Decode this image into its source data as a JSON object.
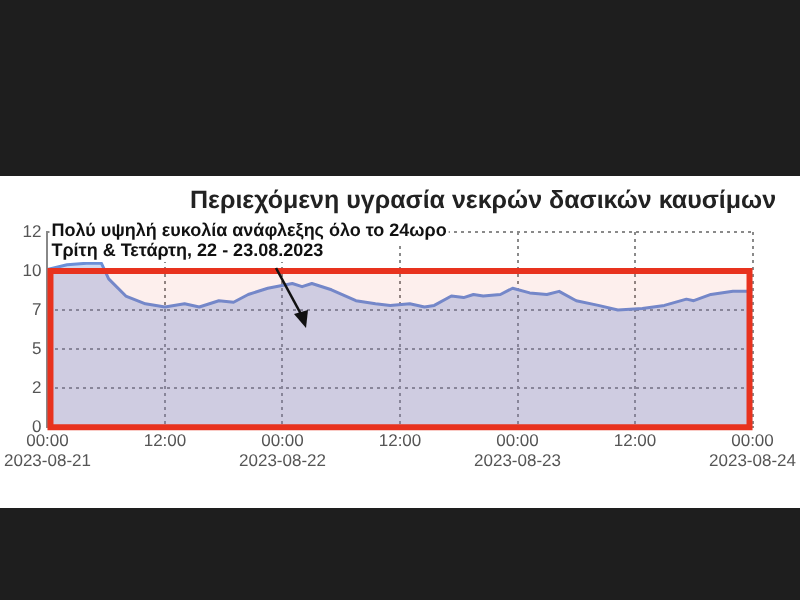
{
  "chart_data": {
    "type": "area",
    "title": "Περιεχόμενη υγρασία νεκρών δασικών καυσίμων",
    "annotations": [
      "Πολύ υψηλή ευκολία ανάφλεξης όλο το 24ωρο",
      "Τρίτη & Τετάρτη, 22 - 23.08.2023"
    ],
    "x": [
      "2023-08-21T00:00",
      "2023-08-21T02:00",
      "2023-08-21T04:00",
      "2023-08-21T05:30",
      "2023-08-21T06:15",
      "2023-08-21T08:00",
      "2023-08-21T10:00",
      "2023-08-21T12:00",
      "2023-08-21T14:00",
      "2023-08-21T15:30",
      "2023-08-21T17:30",
      "2023-08-21T19:00",
      "2023-08-21T20:30",
      "2023-08-21T22:30",
      "2023-08-22T01:00",
      "2023-08-22T02:00",
      "2023-08-22T03:00",
      "2023-08-22T05:00",
      "2023-08-22T07:30",
      "2023-08-22T09:30",
      "2023-08-22T11:00",
      "2023-08-22T13:00",
      "2023-08-22T14:30",
      "2023-08-22T15:30",
      "2023-08-22T17:15",
      "2023-08-22T18:30",
      "2023-08-22T19:30",
      "2023-08-22T20:30",
      "2023-08-22T22:15",
      "2023-08-22T23:30",
      "2023-08-23T01:15",
      "2023-08-23T03:00",
      "2023-08-23T04:15",
      "2023-08-23T06:00",
      "2023-08-23T08:15",
      "2023-08-23T10:15",
      "2023-08-23T12:45",
      "2023-08-23T15:00",
      "2023-08-23T17:15",
      "2023-08-23T18:00",
      "2023-08-23T19:45",
      "2023-08-23T22:00",
      "2023-08-24T00:00"
    ],
    "series": [
      {
        "color": "#6b8fd8",
        "values": [
          10.1,
          10.4,
          10.5,
          10.5,
          9.5,
          8.4,
          7.9,
          7.7,
          7.9,
          7.7,
          8.1,
          8.0,
          8.5,
          8.9,
          9.2,
          9.0,
          9.2,
          8.8,
          8.1,
          7.9,
          7.8,
          7.9,
          7.7,
          7.8,
          8.4,
          8.3,
          8.5,
          8.4,
          8.5,
          8.9,
          8.6,
          8.5,
          8.7,
          8.1,
          7.8,
          7.5,
          7.6,
          7.8,
          8.2,
          8.1,
          8.5,
          8.7,
          8.7
        ]
      }
    ],
    "xlim": [
      "2023-08-21T00:00",
      "2023-08-24T00:00"
    ],
    "xticks": [
      {
        "value": "2023-08-21T00:00",
        "label": "00:00 2023-08-21"
      },
      {
        "value": "2023-08-21T12:00",
        "label": "12:00"
      },
      {
        "value": "2023-08-22T00:00",
        "label": "00:00 2023-08-22"
      },
      {
        "value": "2023-08-22T12:00",
        "label": "12:00"
      },
      {
        "value": "2023-08-23T00:00",
        "label": "00:00 2023-08-23"
      },
      {
        "value": "2023-08-23T12:00",
        "label": "12:00"
      },
      {
        "value": "2023-08-24T00:00",
        "label": "00:00 2023-08-24"
      }
    ],
    "ylim": [
      0,
      12.5
    ],
    "yticks": [
      0,
      {
        "value": 2.5,
        "label": "2"
      },
      5,
      {
        "value": 7.5,
        "label": "7"
      },
      10,
      {
        "value": 12.5,
        "label": "12"
      }
    ],
    "bands": [
      {
        "axis": "y",
        "from": 0,
        "to": 10,
        "color": "#e8321e"
      }
    ],
    "grid": true,
    "legend": false
  }
}
